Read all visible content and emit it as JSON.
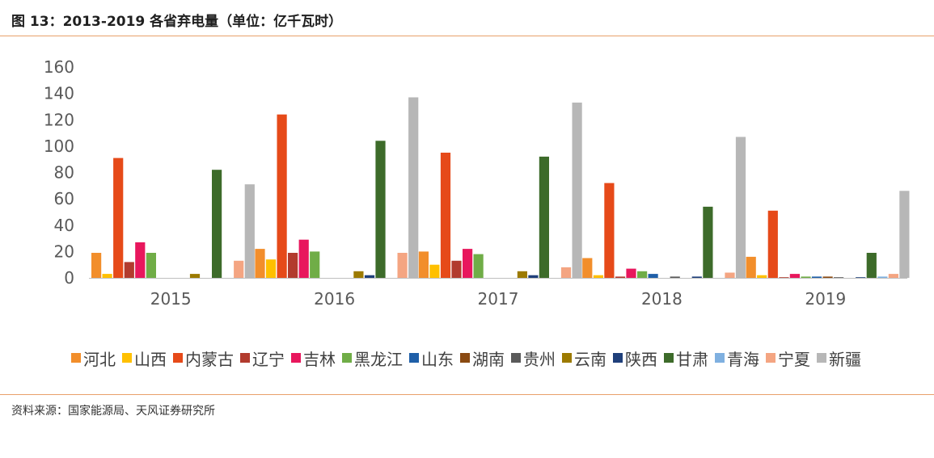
{
  "figure": {
    "title": "图 13：2013-2019 各省弃电量（单位：亿千瓦时）",
    "source": "资料来源：国家能源局、天风证券研究所",
    "accent_rule_color": "#e8a06a"
  },
  "chart_data": {
    "type": "bar",
    "categories": [
      "2015",
      "2016",
      "2017",
      "2018",
      "2019"
    ],
    "ylim": [
      0,
      160
    ],
    "yticks": [
      0,
      20,
      40,
      60,
      80,
      100,
      120,
      140,
      160
    ],
    "grid": false,
    "legend_position": "bottom",
    "series": [
      {
        "name": "河北",
        "color": "#f28e2b",
        "values": [
          19,
          22,
          20,
          15,
          16
        ]
      },
      {
        "name": "山西",
        "color": "#ffc000",
        "values": [
          3,
          14,
          10,
          2,
          2
        ]
      },
      {
        "name": "内蒙古",
        "color": "#e64a19",
        "values": [
          91,
          124,
          95,
          72,
          51
        ]
      },
      {
        "name": "辽宁",
        "color": "#b23b2e",
        "values": [
          12,
          19,
          13,
          1,
          0.5
        ]
      },
      {
        "name": "吉林",
        "color": "#e8175d",
        "values": [
          27,
          29,
          22,
          7,
          3
        ]
      },
      {
        "name": "黑龙江",
        "color": "#70ad47",
        "values": [
          19,
          20,
          18,
          5,
          1
        ]
      },
      {
        "name": "山东",
        "color": "#1f5fa8",
        "values": [
          0,
          0,
          0,
          3,
          1
        ]
      },
      {
        "name": "湖南",
        "color": "#8a4a12",
        "values": [
          0,
          0,
          0,
          0,
          1
        ]
      },
      {
        "name": "贵州",
        "color": "#5a5a5a",
        "values": [
          0,
          0,
          0,
          1,
          0.5
        ]
      },
      {
        "name": "云南",
        "color": "#9c7a00",
        "values": [
          3,
          5,
          5,
          0,
          0
        ]
      },
      {
        "name": "陕西",
        "color": "#1f3f7a",
        "values": [
          0,
          2,
          2,
          1,
          0.5
        ]
      },
      {
        "name": "甘肃",
        "color": "#3d6b2a",
        "values": [
          82,
          104,
          92,
          54,
          19
        ]
      },
      {
        "name": "青海",
        "color": "#7fb0e0",
        "values": [
          0,
          0,
          0,
          0,
          1
        ]
      },
      {
        "name": "宁夏",
        "color": "#f4a582",
        "values": [
          13,
          19,
          8,
          4,
          3
        ]
      },
      {
        "name": "新疆",
        "color": "#b7b7b7",
        "values": [
          71,
          137,
          133,
          107,
          66
        ]
      }
    ]
  }
}
